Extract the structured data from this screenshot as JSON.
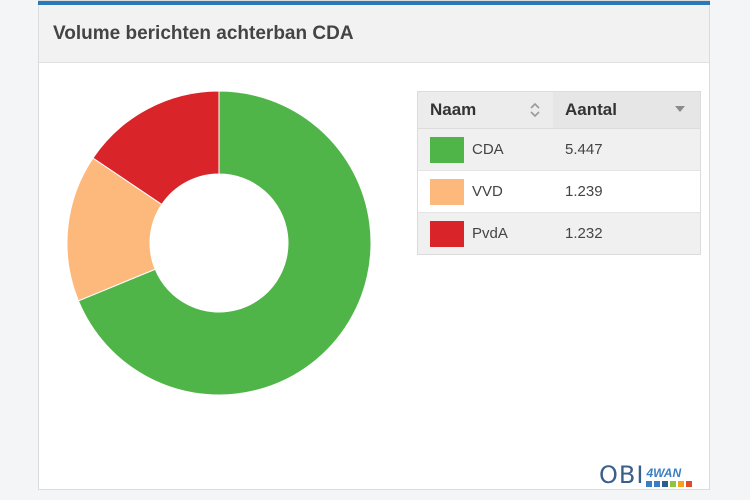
{
  "widget": {
    "title": "Volume berichten achterban CDA"
  },
  "legend": {
    "col_name": "Naam",
    "col_count": "Aantal",
    "rows": [
      {
        "name": "CDA",
        "count": "5.447"
      },
      {
        "name": "VVD",
        "count": "1.239"
      },
      {
        "name": "PvdA",
        "count": "1.232"
      }
    ]
  },
  "logo": {
    "text": "OBI",
    "sub": "4WAN"
  },
  "colors": {
    "accent": "#2a78b8",
    "cda": "#4fb548",
    "vvd": "#fdb87c",
    "pvda": "#d9242a"
  },
  "chart_data": {
    "type": "pie",
    "donut": true,
    "title": "Volume berichten achterban CDA",
    "categories": [
      "CDA",
      "VVD",
      "PvdA"
    ],
    "values": [
      5447,
      1239,
      1232
    ],
    "colors": [
      "#4fb548",
      "#fdb87c",
      "#d9242a"
    ],
    "legend": "right"
  }
}
